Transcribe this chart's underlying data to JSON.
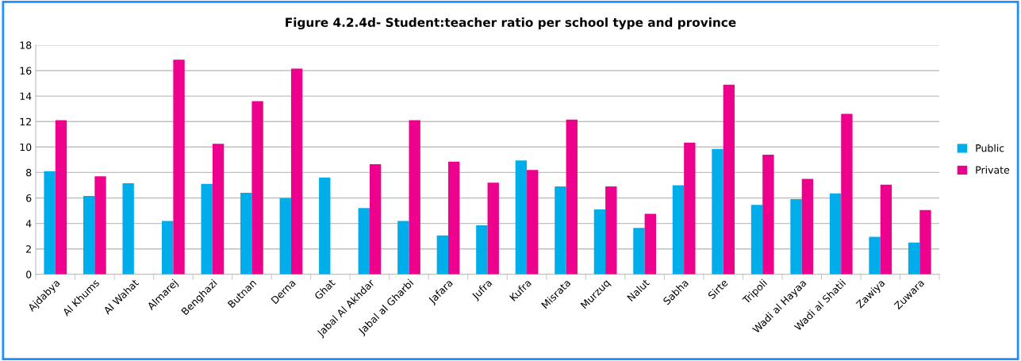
{
  "chart_data": {
    "type": "bar",
    "title": "Figure 4.2.4d- Student:teacher ratio per school type and province",
    "categories": [
      "Ajdabya",
      "Al Khums",
      "Al Wahat",
      "Almarej",
      "Benghazi",
      "Butnan",
      "Derna",
      "Ghat",
      "Jabal Al Akhdar",
      "Jabal al Gharbi",
      "Jafara",
      "Jufra",
      "Kufra",
      "Misrata",
      "Murzuq",
      "Nalut",
      "Sabha",
      "Sirte",
      "Tripoli",
      "Wadi al Hayaa",
      "Wadi al Shatii",
      "Zawiya",
      "Zuwara"
    ],
    "series": [
      {
        "name": "Public",
        "color": "#00adeb",
        "values": [
          8.1,
          6.15,
          7.15,
          4.2,
          7.1,
          6.4,
          6.0,
          7.6,
          5.2,
          4.2,
          3.05,
          3.85,
          8.95,
          6.9,
          5.1,
          3.65,
          7.0,
          9.85,
          5.45,
          5.9,
          6.35,
          2.95,
          2.5
        ]
      },
      {
        "name": "Private",
        "color": "#ec008c",
        "values": [
          12.1,
          7.7,
          null,
          16.85,
          10.25,
          13.6,
          16.15,
          null,
          8.65,
          12.1,
          8.85,
          7.2,
          8.2,
          12.15,
          6.9,
          4.75,
          10.35,
          14.9,
          9.4,
          7.5,
          12.6,
          7.05,
          5.05
        ]
      }
    ],
    "ylim": [
      0,
      18
    ],
    "yticks": [
      0,
      2,
      4,
      6,
      8,
      10,
      12,
      14,
      16,
      18
    ],
    "grid": "y",
    "legend": "right"
  }
}
